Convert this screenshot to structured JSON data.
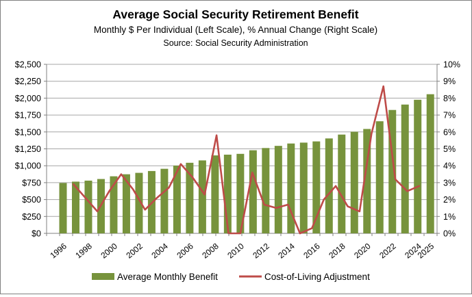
{
  "header": {
    "title": "Average Social Security Retirement Benefit",
    "subtitle": "Monthly $ Per Individual (Left Scale), % Annual Change (Right Scale)",
    "source": "Source:  Social Security Administration"
  },
  "legend": {
    "bar_label": "Average Monthly Benefit",
    "line_label": "Cost-of-Living Adjustment"
  },
  "colors": {
    "bar": "#77933C",
    "line": "#BE4B48",
    "grid": "#A6A6A6",
    "axis": "#808080",
    "text": "#000000",
    "background": "#FFFFFF"
  },
  "chart_data": {
    "type": "combo-bar-line",
    "title": "Average Social Security Retirement Benefit",
    "subtitle": "Monthly $ Per Individual (Left Scale), % Annual Change (Right Scale)",
    "source": "Source:  Social Security Administration",
    "categories": [
      1996,
      1997,
      1998,
      1999,
      2000,
      2001,
      2002,
      2003,
      2004,
      2005,
      2006,
      2007,
      2008,
      2009,
      2010,
      2011,
      2012,
      2013,
      2014,
      2015,
      2016,
      2017,
      2018,
      2019,
      2020,
      2021,
      2022,
      2023,
      2024,
      2025
    ],
    "series": [
      {
        "name": "Average Monthly Benefit",
        "type": "bar",
        "axis": "left",
        "values": [
          745,
          765,
          780,
          804,
          844,
          874,
          895,
          922,
          955,
          1002,
          1044,
          1079,
          1153,
          1164,
          1176,
          1229,
          1262,
          1294,
          1329,
          1342,
          1360,
          1404,
          1461,
          1503,
          1544,
          1658,
          1825,
          1905,
          1976,
          2058
        ]
      },
      {
        "name": "Cost-of-Living Adjustment",
        "type": "line",
        "axis": "right",
        "values": [
          2.9,
          2.1,
          1.3,
          2.5,
          3.5,
          2.6,
          1.4,
          2.1,
          2.7,
          4.1,
          3.3,
          2.3,
          5.8,
          0.0,
          0.0,
          3.6,
          1.7,
          1.5,
          1.7,
          0.0,
          0.3,
          2.0,
          2.8,
          1.6,
          1.3,
          5.9,
          8.7,
          3.2,
          2.5,
          2.8
        ]
      }
    ],
    "left_axis": {
      "min": 0,
      "max": 2500,
      "step": 250,
      "prefix": "$",
      "tick_labels": [
        "$0",
        "$250",
        "$500",
        "$750",
        "$1,000",
        "$1,250",
        "$1,500",
        "$1,750",
        "$2,000",
        "$2,250",
        "$2,500"
      ]
    },
    "right_axis": {
      "min": 0,
      "max": 10,
      "step": 1,
      "suffix": "%",
      "tick_labels": [
        "0%",
        "1%",
        "2%",
        "3%",
        "4%",
        "5%",
        "6%",
        "7%",
        "8%",
        "9%",
        "10%"
      ]
    },
    "x_tick_labels": [
      "1996",
      "1998",
      "2000",
      "2002",
      "2004",
      "2006",
      "2008",
      "2010",
      "2012",
      "2014",
      "2016",
      "2018",
      "2020",
      "2022",
      "2024",
      "2025"
    ],
    "x_label_year_indices": [
      0,
      2,
      4,
      6,
      8,
      10,
      12,
      14,
      16,
      18,
      20,
      22,
      24,
      26,
      28,
      29
    ],
    "grid": "horizontal",
    "legend_position": "bottom"
  }
}
